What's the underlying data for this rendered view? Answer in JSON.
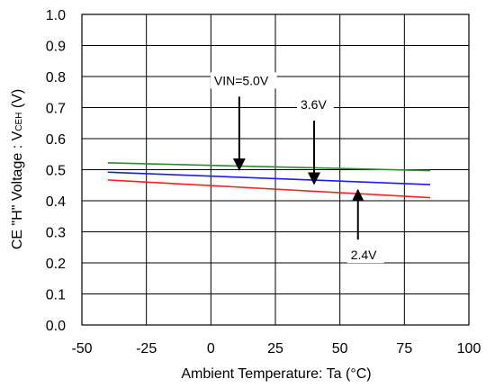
{
  "chart_data": {
    "type": "line",
    "xlabel": "Ambient Temperature: Ta (°C)",
    "xlabel_main": "Ambient Temperature: Ta (",
    "xlabel_unit": "°C",
    "xlabel_close": ")",
    "ylabel": "CE \"H\" Voltage : VCEH (V)",
    "ylabel_main": "CE \"H\" Voltage : V",
    "ylabel_sub": "CEH",
    "ylabel_unit": " (V)",
    "xlim": [
      -50,
      100
    ],
    "ylim": [
      0.0,
      1.0
    ],
    "x_ticks": [
      "-50",
      "-25",
      "0",
      "25",
      "50",
      "75",
      "100"
    ],
    "y_ticks": [
      "0.0",
      "0.1",
      "0.2",
      "0.3",
      "0.4",
      "0.5",
      "0.6",
      "0.7",
      "0.8",
      "0.9",
      "1.0"
    ],
    "grid": true,
    "series": [
      {
        "name": "VIN=5.0V",
        "color": "#2e8b2e",
        "x": [
          -40,
          85
        ],
        "y": [
          0.522,
          0.497
        ]
      },
      {
        "name": "3.6V",
        "color": "#1a1aff",
        "x": [
          -40,
          85
        ],
        "y": [
          0.492,
          0.452
        ]
      },
      {
        "name": "2.4V",
        "color": "#ff2020",
        "x": [
          -40,
          85
        ],
        "y": [
          0.467,
          0.41
        ]
      }
    ],
    "annotations": [
      {
        "text": "VIN=5.0V",
        "series": 0,
        "x": 11
      },
      {
        "text": "3.6V",
        "series": 1,
        "x": 40
      },
      {
        "text": "2.4V",
        "series": 2,
        "x": 57
      }
    ]
  }
}
